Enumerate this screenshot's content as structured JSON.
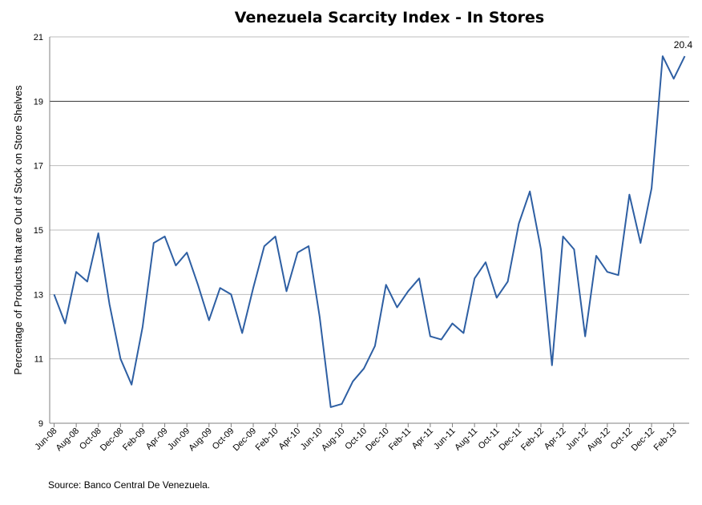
{
  "chart_data": {
    "type": "line",
    "title": "Venezuela Scarcity Index - In Stores",
    "xlabel": "",
    "ylabel": "Percentage of Products that are Out of Stock on Store Shelves",
    "ylim": [
      9,
      21
    ],
    "yticks": [
      9,
      11,
      13,
      15,
      17,
      19,
      21
    ],
    "tick_labels": [
      "Jun-08",
      "Aug-08",
      "Oct-08",
      "Dec-08",
      "Feb-09",
      "Apr-09",
      "Jun-09",
      "Aug-09",
      "Oct-09",
      "Dec-09",
      "Feb-10",
      "Apr-10",
      "Jun-10",
      "Aug-10",
      "Oct-10",
      "Dec-10",
      "Feb-11",
      "Apr-11",
      "Jun-11",
      "Aug-11",
      "Oct-11",
      "Dec-11",
      "Feb-12",
      "Apr-12",
      "Jun-12",
      "Aug-12",
      "Oct-12",
      "Dec-12",
      "Feb-13"
    ],
    "grid": true,
    "line_color": "#2e5fa3",
    "values": [
      13.0,
      12.1,
      13.7,
      13.4,
      14.9,
      12.7,
      11.0,
      10.2,
      12.0,
      14.6,
      14.8,
      13.9,
      14.3,
      13.3,
      12.2,
      13.2,
      13.0,
      11.8,
      13.2,
      14.5,
      14.8,
      13.1,
      14.3,
      14.5,
      12.3,
      9.5,
      9.6,
      10.3,
      10.7,
      11.4,
      13.3,
      12.6,
      13.1,
      13.5,
      11.7,
      11.6,
      12.1,
      11.8,
      13.5,
      14.0,
      12.9,
      13.4,
      15.2,
      16.2,
      14.4,
      10.8,
      14.8,
      14.4,
      11.7,
      14.2,
      13.7,
      13.6,
      16.1,
      14.6,
      16.3,
      20.4,
      19.7,
      20.4
    ],
    "annotation": "20.4"
  },
  "source": "Source: Banco Central De Venezuela."
}
